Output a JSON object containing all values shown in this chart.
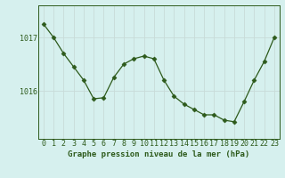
{
  "x": [
    0,
    1,
    2,
    3,
    4,
    5,
    6,
    7,
    8,
    9,
    10,
    11,
    12,
    13,
    14,
    15,
    16,
    17,
    18,
    19,
    20,
    21,
    22,
    23
  ],
  "y": [
    1017.25,
    1017.0,
    1016.7,
    1016.45,
    1016.2,
    1015.85,
    1015.87,
    1016.25,
    1016.5,
    1016.6,
    1016.65,
    1016.6,
    1016.2,
    1015.9,
    1015.75,
    1015.65,
    1015.55,
    1015.55,
    1015.45,
    1015.42,
    1015.8,
    1016.2,
    1016.55,
    1017.0
  ],
  "line_color": "#2d5a1b",
  "marker": "D",
  "marker_size": 2.5,
  "bg_color": "#d6f0ee",
  "grid_color": "#c8dbd8",
  "title": "Graphe pression niveau de la mer (hPa)",
  "yticks": [
    1016,
    1017
  ],
  "ylim": [
    1015.1,
    1017.6
  ],
  "xlim": [
    -0.5,
    23.5
  ],
  "tick_fontsize": 6,
  "title_fontsize": 6.5
}
